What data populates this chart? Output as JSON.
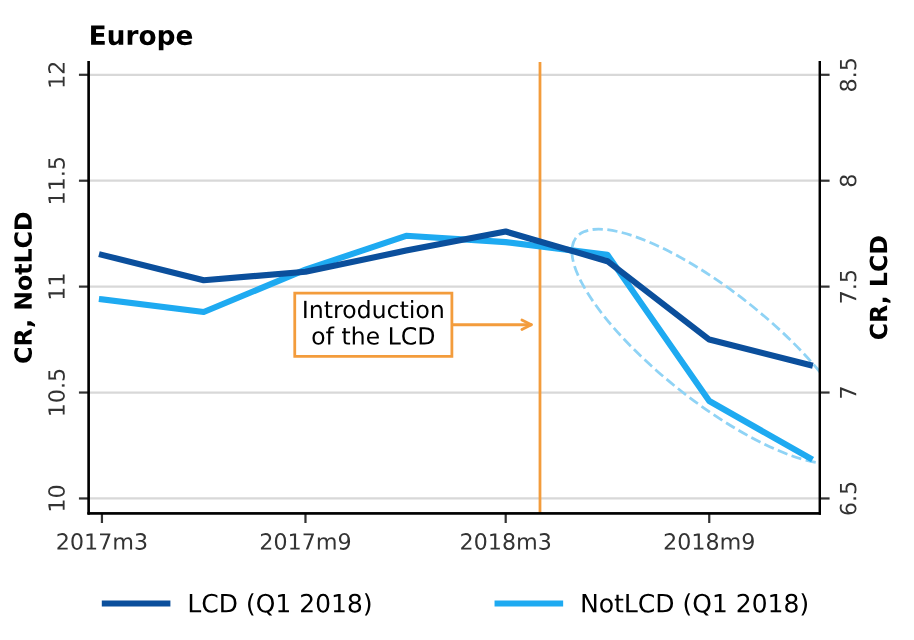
{
  "chart_data": {
    "type": "line",
    "title": "Europe",
    "x": [
      "2017-03",
      "2017-06",
      "2017-09",
      "2017-12",
      "2018-03",
      "2018-06",
      "2018-09",
      "2018-12"
    ],
    "series": [
      {
        "name": "LCD (Q1 2018)",
        "color": "#0b4f9c",
        "axis": "y2",
        "values": [
          7.65,
          7.53,
          7.57,
          7.67,
          7.76,
          7.62,
          7.25,
          7.13
        ]
      },
      {
        "name": "NotLCD (Q1 2018)",
        "color": "#1eaaf1",
        "values": [
          10.94,
          10.88,
          11.08,
          11.24,
          11.21,
          11.15,
          10.46,
          10.19
        ]
      }
    ],
    "xlim": [
      "2017-02-17",
      "2018-12-10"
    ],
    "xticks": [
      {
        "value": "2017-03",
        "label": "2017m3"
      },
      {
        "value": "2017-09",
        "label": "2017m9"
      },
      {
        "value": "2018-03",
        "label": "2018m3"
      },
      {
        "value": "2018-09",
        "label": "2018m9"
      }
    ],
    "ylim": [
      9.93,
      12.06
    ],
    "yticks": [
      10,
      10.5,
      11,
      11.5,
      12
    ],
    "y2lim": [
      6.43,
      8.56
    ],
    "y2ticks": [
      6.5,
      7,
      7.5,
      8,
      8.5
    ],
    "ylabel": "CR, NotLCD",
    "y2label": "CR, LCD",
    "ref_lines": [
      {
        "axis": "x",
        "value": "2018-04",
        "color": "#f39c3c"
      }
    ],
    "annotations": [
      {
        "text": "Introduction\nof the LCD",
        "x": "2018-04",
        "y": 10.82
      }
    ],
    "grid": "y",
    "legend": "bottom",
    "marker": "none",
    "line_style": "solid"
  }
}
